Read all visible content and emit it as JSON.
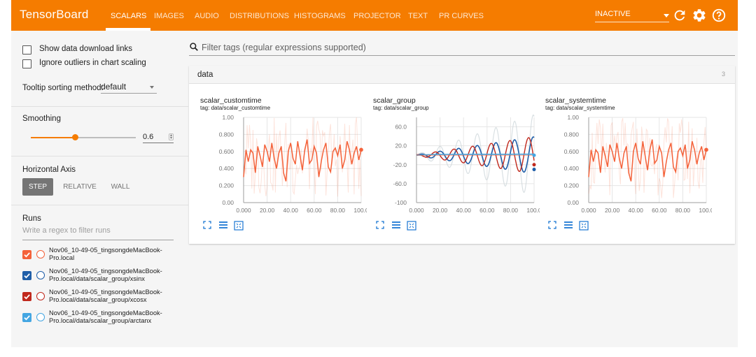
{
  "app": {
    "brand": "TensorBoard",
    "tabs": [
      {
        "label": "SCALARS",
        "active": true
      },
      {
        "label": "IMAGES",
        "active": false
      },
      {
        "label": "AUDIO",
        "active": false
      },
      {
        "label": "DISTRIBUTIONS",
        "active": false
      },
      {
        "label": "HISTOGRAMS",
        "active": false
      },
      {
        "label": "PROJECTOR",
        "active": false
      },
      {
        "label": "TEXT",
        "active": false
      },
      {
        "label": "PR CURVES",
        "active": false
      }
    ],
    "status_select": "INACTIVE",
    "icons": [
      "refresh-icon",
      "settings-icon",
      "help-icon"
    ]
  },
  "colors": {
    "accent": "#f57c00",
    "run1": "#f4623a",
    "run2": "#1f5ea8",
    "run3": "#c0281c",
    "run4": "#44a6e2"
  },
  "sidebar": {
    "show_download_links": {
      "label": "Show data download links",
      "checked": false
    },
    "ignore_outliers": {
      "label": "Ignore outliers in chart scaling",
      "checked": false
    },
    "tooltip_label": "Tooltip sorting method:",
    "tooltip_value": "default",
    "smoothing_label": "Smoothing",
    "smoothing_value": "0.6",
    "smoothing_fraction": 0.6,
    "horizontal_axis_label": "Horizontal Axis",
    "axis_options": [
      {
        "label": "STEP",
        "active": true
      },
      {
        "label": "RELATIVE",
        "active": false
      },
      {
        "label": "WALL",
        "active": false
      }
    ],
    "runs_label": "Runs",
    "runs_filter_placeholder": "Write a regex to filter runs",
    "runs": [
      {
        "line1": "Nov06_10-49-05_tingsongdeMacBook-",
        "line2": "Pro.local",
        "checked": true,
        "color": "#f4623a"
      },
      {
        "line1": "Nov06_10-49-05_tingsongdeMacBook-",
        "line2": "Pro.local/data/scalar_group/xsinx",
        "checked": true,
        "color": "#1f5ea8"
      },
      {
        "line1": "Nov06_10-49-05_tingsongdeMacBook-",
        "line2": "Pro.local/data/scalar_group/xcosx",
        "checked": true,
        "color": "#c0281c"
      },
      {
        "line1": "Nov06_10-49-05_tingsongdeMacBook-",
        "line2": "Pro.local/data/scalar_group/arctanx",
        "checked": true,
        "color": "#44a6e2"
      }
    ]
  },
  "main": {
    "filter_placeholder": "Filter tags (regular expressions supported)",
    "card_title": "data",
    "card_count": "3"
  },
  "chart_data": [
    {
      "type": "line",
      "title": "scalar_customtime",
      "subtitle": "tag: data/scalar_customtime",
      "x_ticks": [
        "0.000",
        "20.00",
        "40.00",
        "60.00",
        "80.00",
        "100.0"
      ],
      "y_ticks": [
        "0.00",
        "0.200",
        "0.400",
        "0.600",
        "0.800",
        "1.00"
      ],
      "xlim": [
        0,
        100
      ],
      "ylim": [
        0,
        1
      ],
      "grid": true,
      "series": [
        {
          "color": "#f4623a",
          "values": [
            0.3,
            0.62,
            0.48,
            0.62,
            0.58,
            0.35,
            0.66,
            0.55,
            0.42,
            0.68,
            0.6,
            0.48,
            0.7,
            0.52,
            0.4,
            0.58,
            0.66,
            0.35,
            0.25,
            0.6,
            0.7,
            0.52,
            0.45,
            0.72,
            0.55,
            0.38,
            0.62,
            0.74,
            0.46,
            0.5,
            0.66,
            0.58,
            0.3,
            0.48,
            0.62,
            0.7,
            0.42,
            0.36,
            0.6,
            0.64,
            0.55,
            0.68,
            0.4,
            0.5,
            0.72,
            0.62,
            0.45,
            0.58,
            0.66,
            0.5,
            0.62
          ]
        }
      ]
    },
    {
      "type": "line",
      "title": "scalar_group",
      "subtitle": "tag: data/scalar_group",
      "x_ticks": [
        "0.000",
        "20.00",
        "40.00",
        "60.00",
        "80.00",
        "100.0"
      ],
      "y_ticks": [
        "-100",
        "-60.0",
        "-20.0",
        "20.0",
        "60.0"
      ],
      "xlim": [
        0,
        100
      ],
      "ylim": [
        -100,
        80
      ],
      "grid": true,
      "series": [
        {
          "name": "xsinx",
          "color": "#1f5ea8",
          "amplitude": 38,
          "period": 6.3
        },
        {
          "name": "xcosx",
          "color": "#c0281c",
          "amplitude": 38,
          "period": 6.3
        },
        {
          "name": "arctanx",
          "color": "#44a6e2",
          "values": [
            0,
            1.5
          ]
        },
        {
          "color": "#f4623a",
          "values": [
            0,
            0.5
          ]
        }
      ]
    },
    {
      "type": "line",
      "title": "scalar_systemtime",
      "subtitle": "tag: data/scalar_systemtime",
      "x_ticks": [
        "0.000",
        "20.00",
        "40.00",
        "60.00",
        "80.00",
        "100.0"
      ],
      "y_ticks": [
        "0.00",
        "0.200",
        "0.400",
        "0.600",
        "0.800",
        "1.00"
      ],
      "xlim": [
        0,
        100
      ],
      "ylim": [
        0,
        1
      ],
      "grid": true,
      "series": [
        {
          "color": "#f4623a",
          "values": [
            0.3,
            0.62,
            0.48,
            0.62,
            0.58,
            0.35,
            0.66,
            0.55,
            0.42,
            0.68,
            0.6,
            0.48,
            0.7,
            0.52,
            0.4,
            0.58,
            0.66,
            0.35,
            0.25,
            0.6,
            0.7,
            0.52,
            0.45,
            0.72,
            0.55,
            0.38,
            0.62,
            0.74,
            0.46,
            0.5,
            0.66,
            0.58,
            0.3,
            0.48,
            0.62,
            0.7,
            0.42,
            0.36,
            0.6,
            0.64,
            0.55,
            0.68,
            0.4,
            0.5,
            0.72,
            0.62,
            0.45,
            0.58,
            0.66,
            0.5,
            0.62
          ]
        }
      ]
    }
  ]
}
